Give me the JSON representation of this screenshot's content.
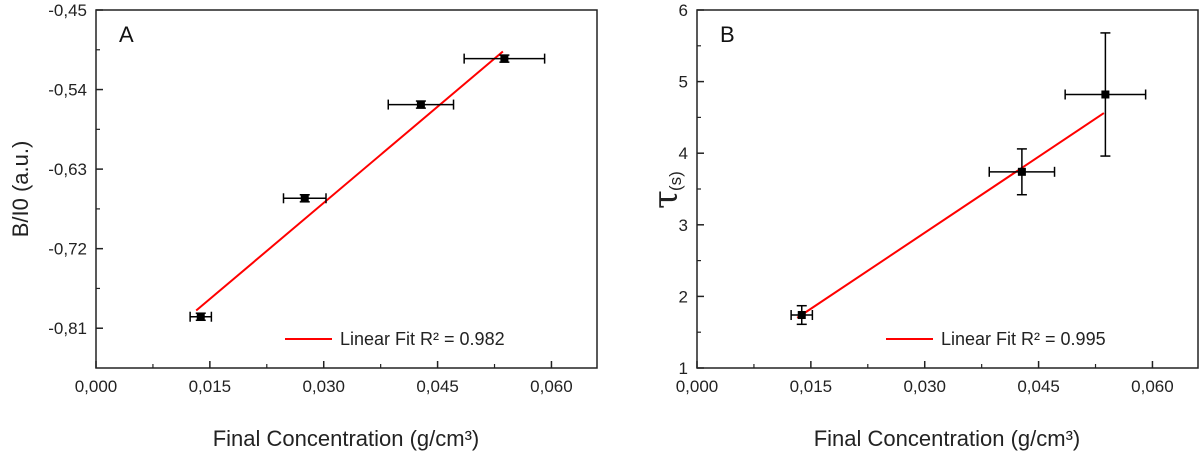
{
  "chart_data": [
    {
      "type": "scatter",
      "panel_label": "A",
      "xlabel": "Final Concentration (g/cm³)",
      "ylabel": "B/I0 (a.u.)",
      "xlim": [
        0.0,
        0.066
      ],
      "ylim": [
        -0.855,
        -0.45
      ],
      "xticks": [
        0.0,
        0.015,
        0.03,
        0.045,
        0.06
      ],
      "xtick_labels": [
        "0,000",
        "0,015",
        "0,030",
        "0,045",
        "0,060"
      ],
      "yticks": [
        -0.81,
        -0.72,
        -0.63,
        -0.54,
        -0.45
      ],
      "ytick_labels": [
        "-0,81",
        "-0,72",
        "-0,63",
        "-0,54",
        "-0,45"
      ],
      "points": [
        {
          "x": 0.0138,
          "y": -0.797,
          "xerr": 0.0014,
          "yerr": 0.004
        },
        {
          "x": 0.0275,
          "y": -0.663,
          "xerr": 0.0028,
          "yerr": 0.004
        },
        {
          "x": 0.0428,
          "y": -0.557,
          "xerr": 0.0043,
          "yerr": 0.004
        },
        {
          "x": 0.0538,
          "y": -0.505,
          "xerr": 0.0053,
          "yerr": 0.004
        }
      ],
      "fit": {
        "x": [
          0.0132,
          0.0536
        ],
        "y": [
          -0.79,
          -0.497
        ]
      },
      "legend": {
        "label": "Linear Fit R² = 0.982",
        "color": "#ff0000",
        "position": "bottom-right"
      },
      "colors": {
        "points": "#000000",
        "fit": "#ff0000"
      }
    },
    {
      "type": "scatter",
      "panel_label": "B",
      "xlabel": "Final Concentration (g/cm³)",
      "ylabel": "τ",
      "ylabel_sub": "(s)",
      "xlim": [
        0.0,
        0.066
      ],
      "ylim": [
        1.0,
        6.0
      ],
      "xticks": [
        0.0,
        0.015,
        0.03,
        0.045,
        0.06
      ],
      "xtick_labels": [
        "0,000",
        "0,015",
        "0,030",
        "0,045",
        "0,060"
      ],
      "yticks": [
        1,
        2,
        3,
        4,
        5,
        6
      ],
      "ytick_labels": [
        "1",
        "2",
        "3",
        "4",
        "5",
        "6"
      ],
      "points": [
        {
          "x": 0.0138,
          "y": 1.74,
          "xerr": 0.0014,
          "yerr": 0.13
        },
        {
          "x": 0.0428,
          "y": 3.74,
          "xerr": 0.0043,
          "yerr": 0.32
        },
        {
          "x": 0.0538,
          "y": 4.82,
          "xerr": 0.0053,
          "yerr": 0.86
        }
      ],
      "fit": {
        "x": [
          0.0132,
          0.0536
        ],
        "y": [
          1.7,
          4.56
        ]
      },
      "legend": {
        "label": "Linear Fit R² = 0.995",
        "color": "#ff0000",
        "position": "bottom-right"
      },
      "colors": {
        "points": "#000000",
        "fit": "#ff0000"
      }
    }
  ]
}
